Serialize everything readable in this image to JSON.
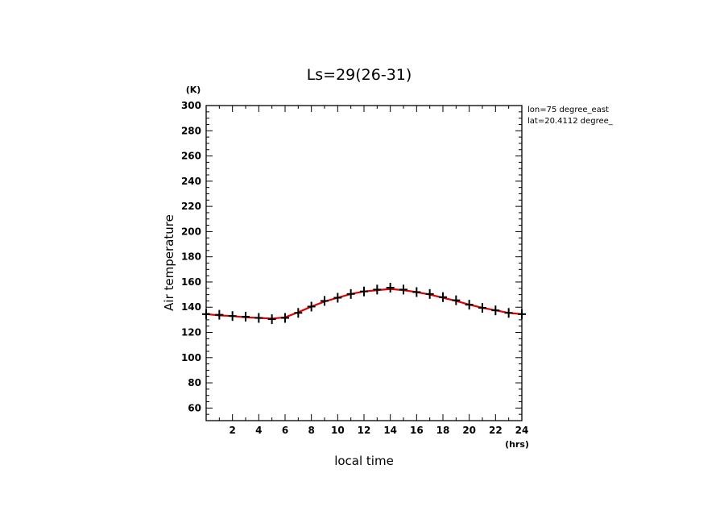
{
  "chart_data": {
    "type": "line",
    "title": "Ls=29(26-31)",
    "xlabel": "local time",
    "ylabel": "Air temperature",
    "x_unit": "(hrs)",
    "y_unit": "(K)",
    "xlim": [
      0,
      24
    ],
    "ylim": [
      50,
      300
    ],
    "x_ticks": [
      2,
      4,
      6,
      8,
      10,
      12,
      14,
      16,
      18,
      20,
      22,
      24
    ],
    "y_ticks": [
      60,
      80,
      100,
      120,
      140,
      160,
      180,
      200,
      220,
      240,
      260,
      280,
      300
    ],
    "annotations": [
      "lon=75 degree_east",
      "lat=20.4112 degree_"
    ],
    "grid": false,
    "series": [
      {
        "style": "markers",
        "marker": "plus",
        "color": "#000000",
        "x": [
          0,
          1,
          2,
          3,
          4,
          5,
          6,
          7,
          8,
          9,
          10,
          11,
          12,
          13,
          14,
          15,
          16,
          17,
          18,
          19,
          20,
          21,
          22,
          23,
          24
        ],
        "y": [
          134.5,
          134,
          133,
          132.5,
          131.5,
          130.5,
          131.5,
          135.5,
          140.5,
          145,
          147.5,
          150.5,
          152.5,
          154,
          155.5,
          154,
          152,
          150.5,
          148,
          145.5,
          142,
          139.5,
          137.5,
          135.5,
          134.5
        ]
      },
      {
        "style": "line",
        "color": "#e00000",
        "x": [
          0,
          1,
          2,
          3,
          4,
          5,
          6,
          7,
          8,
          9,
          10,
          11,
          12,
          13,
          14,
          15,
          16,
          17,
          18,
          19,
          20,
          21,
          22,
          23,
          24
        ],
        "y": [
          134.5,
          133.5,
          133,
          132,
          131.5,
          131,
          132,
          136,
          140.5,
          144.5,
          147.5,
          150.5,
          152.5,
          153.5,
          154.5,
          153.5,
          152,
          150,
          147.5,
          145,
          142,
          139.5,
          137.5,
          135.5,
          134.5
        ]
      }
    ]
  }
}
